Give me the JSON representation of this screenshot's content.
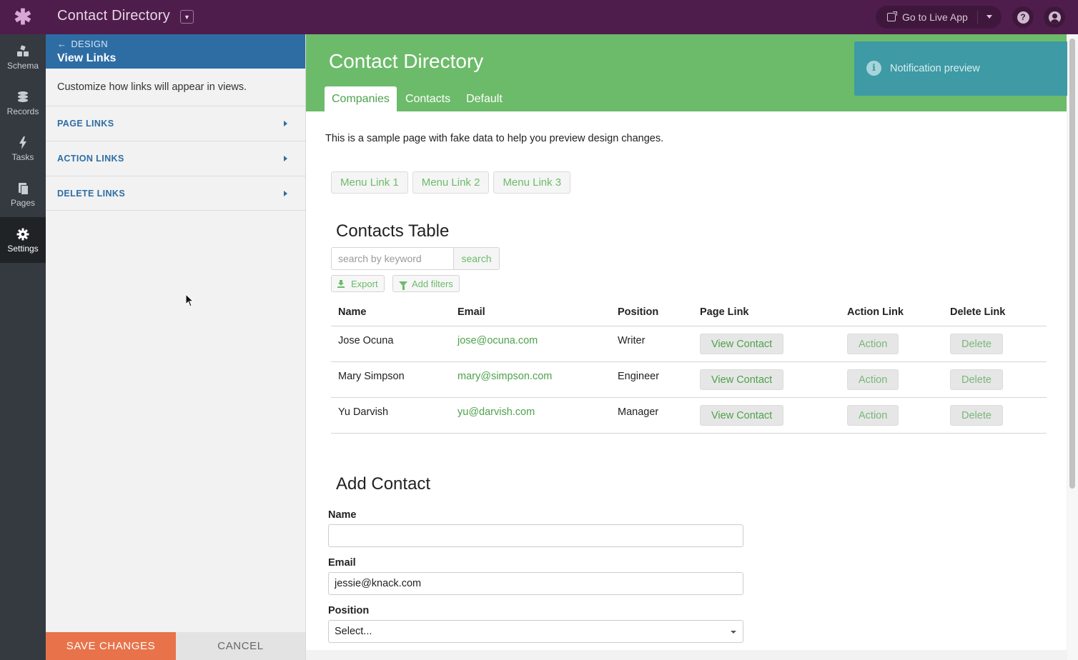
{
  "topbar": {
    "app_title": "Contact Directory",
    "live_app_label": "Go to Live App",
    "help_symbol": "?"
  },
  "leftnav": {
    "items": [
      {
        "label": "Schema",
        "icon": "schema-icon"
      },
      {
        "label": "Records",
        "icon": "database-icon"
      },
      {
        "label": "Tasks",
        "icon": "lightning-icon"
      },
      {
        "label": "Pages",
        "icon": "pages-icon"
      },
      {
        "label": "Settings",
        "icon": "gear-icon",
        "active": true
      }
    ]
  },
  "sidepanel": {
    "back_label": "DESIGN",
    "title": "View Links",
    "description": "Customize how links will appear in views.",
    "sections": [
      "PAGE LINKS",
      "ACTION LINKS",
      "DELETE LINKS"
    ],
    "save_label": "SAVE CHANGES",
    "cancel_label": "CANCEL"
  },
  "preview": {
    "app_name": "Contact Directory",
    "tabs": [
      {
        "label": "Companies",
        "active": true
      },
      {
        "label": "Contacts"
      },
      {
        "label": "Default"
      }
    ],
    "sample_text": "This is a sample page with fake data to help you preview design changes.",
    "menu_links": [
      "Menu Link 1",
      "Menu Link 2",
      "Menu Link 3"
    ],
    "table": {
      "title": "Contacts Table",
      "search_placeholder": "search by keyword",
      "search_label": "search",
      "export_label": "Export",
      "filters_label": "Add filters",
      "columns": [
        "Name",
        "Email",
        "Position",
        "Page Link",
        "Action Link",
        "Delete Link"
      ],
      "rows": [
        {
          "name": "Jose Ocuna",
          "email": "jose@ocuna.com",
          "position": "Writer",
          "page_link": "View Contact",
          "action_link": "Action",
          "delete_link": "Delete"
        },
        {
          "name": "Mary Simpson",
          "email": "mary@simpson.com",
          "position": "Engineer",
          "page_link": "View Contact",
          "action_link": "Action",
          "delete_link": "Delete"
        },
        {
          "name": "Yu Darvish",
          "email": "yu@darvish.com",
          "position": "Manager",
          "page_link": "View Contact",
          "action_link": "Action",
          "delete_link": "Delete"
        }
      ]
    },
    "form": {
      "title": "Add Contact",
      "name_label": "Name",
      "name_value": "",
      "email_label": "Email",
      "email_value": "jessie@knack.com",
      "position_label": "Position",
      "position_value": "Select..."
    }
  },
  "toast": {
    "text": "Notification preview",
    "icon_symbol": "i"
  },
  "colors": {
    "topbar": "#4f1d4c",
    "accent_green": "#6cbb6a",
    "panel_header_blue": "#2e6da4",
    "save_orange": "#e8734a",
    "toast_teal": "#3e9aa5"
  }
}
